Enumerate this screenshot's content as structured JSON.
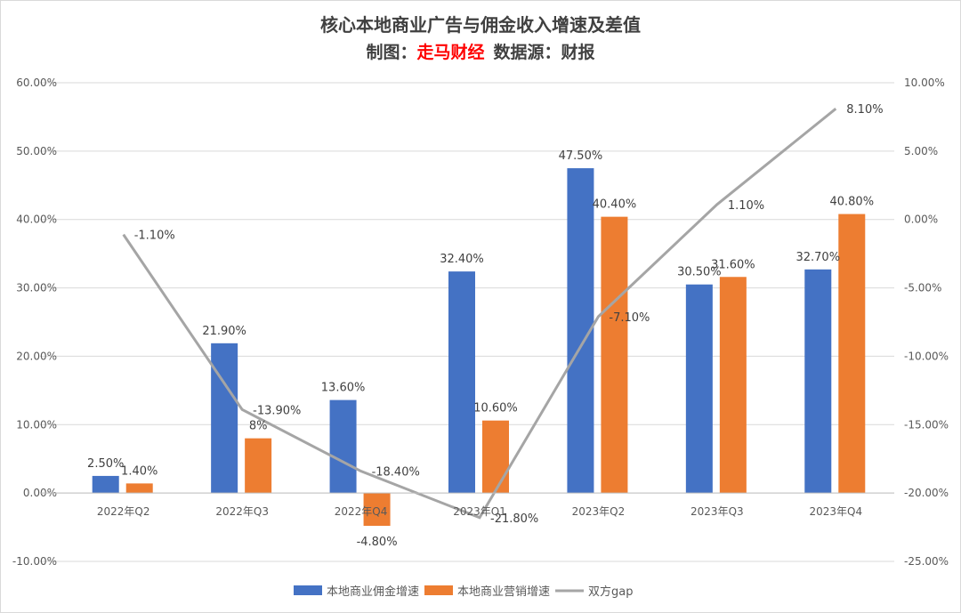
{
  "chart_data": {
    "type": "bar",
    "title": "核心本地商业广告与佣金收入增速及差值",
    "subtitle_prefix": "制图：",
    "subtitle_brand": "走马财经",
    "subtitle_suffix": "数据源：财报",
    "categories": [
      "2022年Q2",
      "2022年Q3",
      "2022年Q4",
      "2023年Q1",
      "2023年Q2",
      "2023年Q3",
      "2023年Q4"
    ],
    "series": [
      {
        "name": "本地商业佣金增速",
        "type": "bar",
        "axis": "left",
        "color": "#4472c4",
        "values": [
          2.5,
          21.9,
          13.6,
          32.4,
          47.5,
          30.5,
          32.7
        ],
        "labels": [
          "2.50%",
          "21.90%",
          "13.60%",
          "32.40%",
          "47.50%",
          "30.50%",
          "32.70%"
        ]
      },
      {
        "name": "本地商业营销增速",
        "type": "bar",
        "axis": "left",
        "color": "#ed7d31",
        "values": [
          1.4,
          8,
          -4.8,
          10.6,
          40.4,
          31.6,
          40.8
        ],
        "labels": [
          "1.40%",
          "8%",
          "-4.80%",
          "10.60%",
          "40.40%",
          "31.60%",
          "40.80%"
        ]
      },
      {
        "name": "双方gap",
        "type": "line",
        "axis": "right",
        "color": "#a5a5a5",
        "values": [
          -1.1,
          -13.9,
          -18.4,
          -21.8,
          -7.1,
          1.1,
          8.1
        ],
        "labels": [
          "-1.10%",
          "-13.90%",
          "-18.40%",
          "-21.80%",
          "-7.10%",
          "1.10%",
          "8.10%"
        ]
      }
    ],
    "y_left": {
      "ylim": [
        -10,
        60
      ],
      "ticks": [
        "-10.00%",
        "0.00%",
        "10.00%",
        "20.00%",
        "30.00%",
        "40.00%",
        "50.00%",
        "60.00%"
      ]
    },
    "y_right": {
      "ylim": [
        -25,
        10
      ],
      "ticks": [
        "-25.00%",
        "-20.00%",
        "-15.00%",
        "-10.00%",
        "-5.00%",
        "0.00%",
        "5.00%",
        "10.00%"
      ]
    },
    "grid": true,
    "legend": "bottom"
  }
}
